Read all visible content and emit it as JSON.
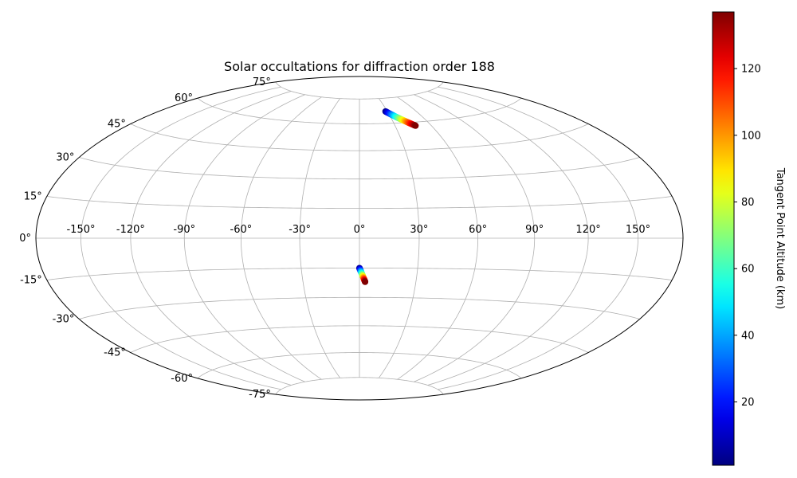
{
  "chart_data": {
    "type": "scatter",
    "projection": "hammer",
    "title": "Solar occultations for diffraction order 188",
    "xlabel": "",
    "ylabel": "",
    "grid": true,
    "lon_ticks": [
      -150,
      -120,
      -90,
      -60,
      -30,
      0,
      30,
      60,
      90,
      120,
      150
    ],
    "lon_tick_labels": [
      "-150°",
      "-120°",
      "-90°",
      "-60°",
      "-30°",
      "0°",
      "30°",
      "60°",
      "90°",
      "120°",
      "150°"
    ],
    "lat_ticks": [
      -75,
      -60,
      -45,
      -30,
      -15,
      0,
      15,
      30,
      45,
      60,
      75
    ],
    "lat_tick_labels": [
      "-75°",
      "-60°",
      "-45°",
      "-30°",
      "-15°",
      "0°",
      "15°",
      "30°",
      "45°",
      "60°",
      "75°"
    ],
    "colormap": "jet",
    "colorbar": {
      "label": "Tangent Point Altitude (km)",
      "range": [
        1,
        137
      ],
      "ticks": [
        20,
        40,
        60,
        80,
        100,
        120
      ],
      "tick_labels": [
        "20",
        "40",
        "60",
        "80",
        "100",
        "120"
      ]
    },
    "series": [
      {
        "lon_range": [
          28,
          47
        ],
        "lat_range": [
          67,
          58
        ],
        "altitude_range": [
          1,
          137
        ]
      },
      {
        "lon_range": [
          0,
          3
        ],
        "lat_range": [
          -15,
          -22
        ],
        "altitude_range": [
          1,
          137
        ]
      }
    ]
  }
}
